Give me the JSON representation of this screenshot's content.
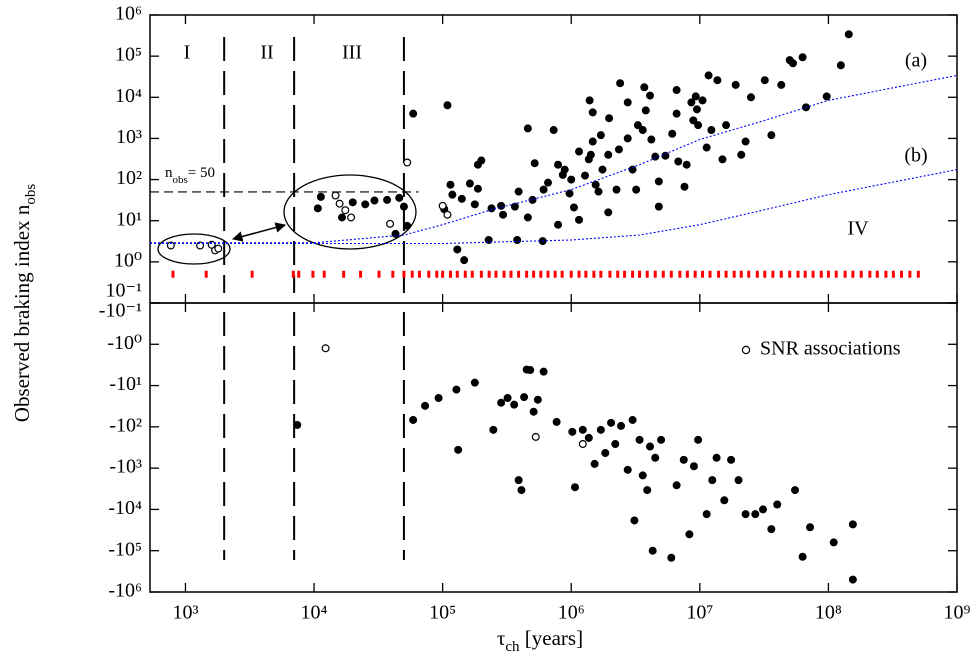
{
  "chart_data": [
    {
      "type": "scatter",
      "xscale": "log",
      "yscale": "log",
      "xlim": [
        530,
        1000000000
      ],
      "ylim": [
        0.1,
        1000000
      ],
      "xticks": [
        1000,
        10000,
        100000,
        1000000,
        10000000,
        100000000,
        1000000000
      ],
      "yticks": [
        {
          "value": 0.1,
          "label": "10⁻¹"
        },
        {
          "value": 1,
          "label": "10⁰"
        },
        {
          "value": 10,
          "label": "10¹"
        },
        {
          "value": 100,
          "label": "10²"
        },
        {
          "value": 1000,
          "label": "10³"
        },
        {
          "value": 10000,
          "label": "10⁴"
        },
        {
          "value": 100000,
          "label": "10⁵"
        },
        {
          "value": 1000000,
          "label": "10⁶"
        }
      ],
      "ylabel": {
        "text": "Observed braking index n",
        "sub": "obs"
      },
      "vlines": [
        2000,
        7000,
        50000
      ],
      "regions": [
        "I",
        "II",
        "III",
        "IV"
      ],
      "hline": {
        "y": 50,
        "x_end": 65000,
        "color": "#000000",
        "label": {
          "text": "n",
          "sub": "obs",
          "rest": "= 50"
        }
      },
      "series": [
        {
          "marker": "filled",
          "color": "#000000",
          "x": [
            11300,
            10700,
            20000,
            25000,
            16500,
            29500,
            37000,
            46000,
            50000,
            43000,
            59000,
            53000,
            103000,
            119000,
            141000,
            130000,
            147000,
            163000,
            178000,
            200000,
            240000,
            285000,
            188000,
            115000,
            228000,
            295000,
            380000,
            365000,
            390000,
            500000,
            610000,
            660000,
            600000,
            730000,
            790000,
            860000,
            970000,
            1050000,
            1280000,
            1370000,
            1390000,
            1470000,
            1700000,
            1470000,
            1420000,
            1550000,
            1630000,
            1750000,
            1940000,
            1940000,
            2350000,
            2750000,
            3000000,
            3200000,
            3300000,
            3700000,
            3800000,
            4200000,
            4500000,
            4800000,
            5400000,
            6100000,
            6600000,
            6800000,
            7900000,
            8600000,
            9300000,
            9500000,
            9700000,
            10500000,
            11300000,
            12300000,
            11700000,
            16000000,
            22700000,
            25000000,
            32000000,
            36000000,
            43000000,
            50000000,
            53000000,
            63000000,
            67000000,
            97000000,
            125000000,
            144000000,
            15000000,
            19000000,
            2750000,
            1970000,
            3600000,
            2250000,
            1150000,
            1150000,
            890000,
            520000,
            460000,
            460000,
            188000,
            109000,
            2400000,
            6600000,
            4800000,
            7600000,
            13700000,
            21000000,
            790000,
            1000000,
            4100000,
            8900000
          ],
          "values": [
            38,
            20,
            28,
            25,
            12,
            31,
            32,
            36,
            22,
            4.8,
            4000,
            7.5,
            19,
            43,
            34,
            2,
            1.1,
            80,
            25,
            290,
            20,
            23,
            60,
            75,
            3.4,
            14,
            3.4,
            22,
            51,
            32,
            57,
            84,
            3.2,
            1600,
            230,
            130,
            46,
            21,
            125,
            310,
            8400,
            4300,
            1200,
            840,
            400,
            75,
            51,
            175,
            400,
            16,
            540,
            1000,
            175,
            57,
            2100,
            17500,
            4800,
            940,
            360,
            90,
            380,
            1300,
            4000,
            275,
            230,
            7500,
            10500,
            5100,
            2100,
            8400,
            600,
            1600,
            34000,
            2100,
            840,
            10000,
            26000,
            1200,
            20000,
            80000,
            67000,
            94000,
            5700,
            10500,
            60000,
            340000,
            310,
            20000,
            7500,
            3100,
            1600,
            57,
            480,
            10.5,
            175,
            250,
            1750,
            12,
            230,
            6400,
            22000,
            15000,
            22,
            67,
            26000,
            400,
            8,
            100,
            11000,
            2750
          ]
        },
        {
          "marker": "open",
          "color": "#000000",
          "x": [
            770,
            1300,
            1600,
            1700,
            1800,
            14700,
            15800,
            17500,
            19400,
            39000,
            53000,
            100000,
            109000
          ],
          "values": [
            2.5,
            2.5,
            2.6,
            1.9,
            2.1,
            41,
            26,
            18,
            12,
            8.4,
            260,
            23,
            14
          ]
        },
        {
          "marker": "tick",
          "color": "#ff0000",
          "x": [
            800,
            1450,
            3300,
            6900,
            7600,
            9800,
            12000,
            17000,
            23000,
            32000,
            41000,
            50000,
            58000,
            66000,
            78000,
            90000,
            100000,
            115000,
            130000,
            150000,
            170000,
            200000,
            230000,
            260000,
            300000,
            340000,
            390000,
            450000,
            510000,
            580000,
            660000,
            750000,
            850000,
            1000000,
            1150000,
            1300000,
            1500000,
            1700000,
            2000000,
            2300000,
            2600000,
            3000000,
            3400000,
            3900000,
            4500000,
            5200000,
            6000000,
            7000000,
            8000000,
            9200000,
            10500000,
            12000000,
            14000000,
            16000000,
            18500000,
            21000000,
            24000000,
            28000000,
            32000000,
            37000000,
            43000000,
            50000000,
            58000000,
            66000000,
            76000000,
            88000000,
            100000000,
            115000000,
            135000000,
            155000000,
            180000000,
            210000000,
            240000000,
            280000000,
            320000000,
            370000000,
            430000000,
            500000000
          ],
          "values": [
            0.5,
            0.5,
            0.5,
            0.5,
            0.5,
            0.5,
            0.5,
            0.5,
            0.5,
            0.5,
            0.5,
            0.5,
            0.5,
            0.5,
            0.5,
            0.5,
            0.5,
            0.5,
            0.5,
            0.5,
            0.5,
            0.5,
            0.5,
            0.5,
            0.5,
            0.5,
            0.5,
            0.5,
            0.5,
            0.5,
            0.5,
            0.5,
            0.5,
            0.5,
            0.5,
            0.5,
            0.5,
            0.5,
            0.5,
            0.5,
            0.5,
            0.5,
            0.5,
            0.5,
            0.5,
            0.5,
            0.5,
            0.5,
            0.5,
            0.5,
            0.5,
            0.5,
            0.5,
            0.5,
            0.5,
            0.5,
            0.5,
            0.5,
            0.5,
            0.5,
            0.5,
            0.5,
            0.5,
            0.5,
            0.5,
            0.5,
            0.5,
            0.5,
            0.5,
            0.5,
            0.5,
            0.5,
            0.5,
            0.5,
            0.5,
            0.5,
            0.5,
            0.5
          ]
        },
        {
          "marker": "line",
          "style": "dotted",
          "color": "#0000ff",
          "label": "(a)",
          "x": [
            530,
            10000,
            50000,
            100000,
            240000,
            1000000,
            3400000,
            10000000,
            32000000,
            100000000,
            1000000000
          ],
          "values": [
            2.9,
            2.9,
            4.5,
            8,
            18.5,
            57,
            230,
            940,
            2750,
            8400,
            34000
          ]
        },
        {
          "marker": "line",
          "style": "dotted",
          "color": "#0000ff",
          "label": "(b)",
          "x": [
            530,
            100000,
            1000000,
            3400000,
            10000000,
            32000000,
            100000000,
            1000000000
          ],
          "values": [
            2.8,
            2.8,
            3.4,
            4.5,
            8,
            18.5,
            43,
            175
          ]
        }
      ]
    },
    {
      "type": "scatter",
      "xscale": "log",
      "yscale": "neg-log",
      "xlim": [
        530,
        1000000000
      ],
      "ylim": [
        -0.1,
        -1000000
      ],
      "xticks": [
        {
          "value": 1000,
          "label": "10³"
        },
        {
          "value": 10000,
          "label": "10⁴"
        },
        {
          "value": 100000,
          "label": "10⁵"
        },
        {
          "value": 1000000,
          "label": "10⁶"
        },
        {
          "value": 10000000,
          "label": "10⁷"
        },
        {
          "value": 100000000,
          "label": "10⁸"
        },
        {
          "value": 1000000000,
          "label": "10⁹"
        }
      ],
      "yticks": [
        {
          "value": -0.1,
          "label": "-10⁻¹"
        },
        {
          "value": -1,
          "label": "-10⁰"
        },
        {
          "value": -10,
          "label": "-10¹"
        },
        {
          "value": -100,
          "label": "-10²"
        },
        {
          "value": -1000,
          "label": "-10³"
        },
        {
          "value": -10000,
          "label": "-10⁴"
        },
        {
          "value": -100000,
          "label": "-10⁵"
        },
        {
          "value": -1000000,
          "label": "-10⁶"
        }
      ],
      "xlabel": {
        "text": "τ",
        "sub": "ch",
        "rest": " [years]"
      },
      "vlines": [
        2000,
        7000,
        50000
      ],
      "legend": "upper right",
      "series": [
        {
          "marker": "filled",
          "color": "#000000",
          "x": [
            7400,
            59000,
            73000,
            93000,
            128000,
            132000,
            178000,
            248000,
            285000,
            320000,
            360000,
            390000,
            410000,
            430000,
            450000,
            480000,
            510000,
            610000,
            550000,
            770000,
            1020000,
            1070000,
            1230000,
            1370000,
            1520000,
            1700000,
            1840000,
            2040000,
            2200000,
            2440000,
            2750000,
            3000000,
            3400000,
            3600000,
            3900000,
            3100000,
            4100000,
            4500000,
            5000000,
            4300000,
            6000000,
            6600000,
            7500000,
            8300000,
            9000000,
            9700000,
            11300000,
            12500000,
            13500000,
            15500000,
            17500000,
            20000000,
            22700000,
            27000000,
            31000000,
            36000000,
            40000000,
            55000000,
            63000000,
            72000000,
            110000000,
            155000000,
            155000000
          ],
          "values": [
            -90,
            -68,
            -31,
            -20,
            -12.5,
            -360,
            -8.5,
            -118,
            -26,
            -20,
            -29,
            -1950,
            -3400,
            -19,
            -4.1,
            -4.2,
            -43,
            -4.6,
            -22,
            -76,
            -132,
            -2900,
            -118,
            -185,
            -790,
            -118,
            -430,
            -80,
            -260,
            -95,
            -1100,
            -68,
            -206,
            -1500,
            -3400,
            -18500,
            -300,
            -560,
            -206,
            -100000,
            -148000,
            -2600,
            -630,
            -40000,
            -900,
            -206,
            -13000,
            -1950,
            -560,
            -6000,
            -630,
            -1950,
            -13000,
            -13000,
            -10000,
            -30000,
            -7600,
            -3400,
            -140000,
            -27000,
            -63000,
            -23000,
            -500000
          ]
        },
        {
          "name": "SNR associations",
          "marker": "open",
          "color": "#000000",
          "x": [
            12300,
            530000,
            1230000
          ],
          "values": [
            -1.25,
            -175,
            -260
          ]
        }
      ]
    }
  ]
}
